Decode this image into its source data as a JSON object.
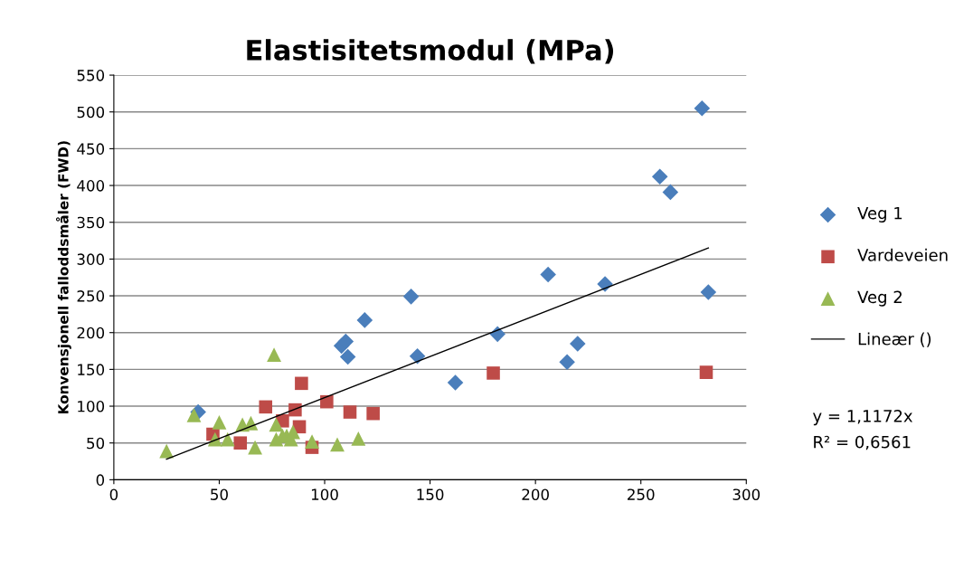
{
  "chart_data": {
    "type": "scatter",
    "title": "Elastisitetsmodul (MPa)",
    "ylabel": "Konvensjonell falloddsmåler (FWD)",
    "xlim": [
      0,
      300
    ],
    "xticks": [
      0,
      50,
      100,
      150,
      200,
      250,
      300
    ],
    "ylim": [
      0,
      550
    ],
    "yticks": [
      0,
      50,
      100,
      150,
      200,
      250,
      300,
      350,
      400,
      450,
      500,
      550
    ],
    "grid": "y",
    "legend": "right",
    "annotations": [
      "y = 1,1172x",
      "R² = 0,6561"
    ],
    "series": [
      {
        "name": "Veg 1",
        "color": "#4a7ebb",
        "marker": "diamond",
        "x": [
          40,
          72,
          108,
          110,
          111,
          119,
          141,
          144,
          162,
          182,
          206,
          215,
          220,
          233,
          259,
          264,
          279,
          282
        ],
        "values": [
          92,
          null,
          182,
          188,
          167,
          217,
          249,
          168,
          132,
          198,
          279,
          160,
          185,
          266,
          412,
          391,
          505,
          255
        ]
      },
      {
        "name": "Vardeveien",
        "color": "#be4b48",
        "marker": "square",
        "x": [
          47,
          55,
          60,
          72,
          80,
          83,
          86,
          88,
          89,
          94,
          101,
          112,
          123,
          180,
          281
        ],
        "values": [
          62,
          null,
          50,
          99,
          80,
          null,
          95,
          72,
          131,
          44,
          106,
          92,
          90,
          145,
          146
        ]
      },
      {
        "name": "Veg 2",
        "color": "#98b954",
        "marker": "triangle",
        "x": [
          25,
          38,
          46,
          48,
          50,
          54,
          61,
          65,
          67,
          76,
          77,
          77,
          80,
          82,
          84,
          85,
          94,
          106,
          116
        ],
        "values": [
          39,
          88,
          null,
          55,
          78,
          55,
          75,
          77,
          44,
          170,
          55,
          75,
          60,
          60,
          55,
          65,
          52,
          48,
          56
        ]
      },
      {
        "name": "Lineær ()",
        "type": "line",
        "color": "#000000",
        "marker": "none",
        "line_style": "solid",
        "x": [
          25,
          282
        ],
        "values": [
          28,
          315
        ]
      }
    ]
  }
}
